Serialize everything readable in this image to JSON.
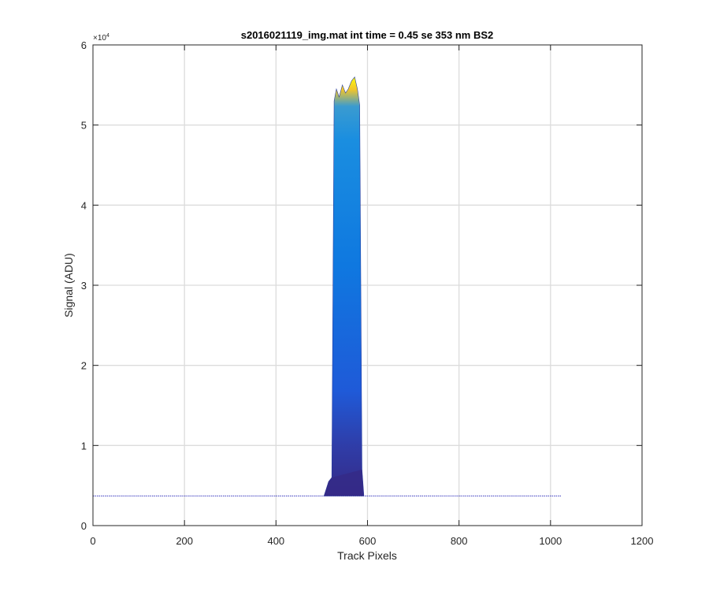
{
  "chart_data": {
    "type": "area",
    "title": "s2016021119_img.mat int time = 0.45 se  353 nm BS2",
    "xlabel": "Track Pixels",
    "ylabel": "Signal (ADU)",
    "exponent_base": "×10",
    "exponent_power": "4",
    "xlim": [
      0,
      1200
    ],
    "ylim": [
      0,
      6
    ],
    "xticks": [
      0,
      200,
      400,
      600,
      800,
      1000,
      1200
    ],
    "yticks": [
      0,
      1,
      2,
      3,
      4,
      5,
      6
    ],
    "xtick_labels": [
      "0",
      "200",
      "400",
      "600",
      "800",
      "1000",
      "1200"
    ],
    "ytick_labels": [
      "0",
      "1",
      "2",
      "3",
      "4",
      "5",
      "6"
    ],
    "grid": true,
    "baseline": {
      "x": [
        0,
        1024
      ],
      "y": 0.37,
      "color": "#3b3bbf"
    },
    "series": [
      {
        "x": [
          505,
          515,
          522,
          527,
          532,
          538,
          545,
          552,
          558,
          565,
          572,
          578,
          583,
          588,
          592
        ],
        "y": [
          0.37,
          0.55,
          0.6,
          5.3,
          5.45,
          5.35,
          5.5,
          5.4,
          5.45,
          5.55,
          5.6,
          5.45,
          5.25,
          0.7,
          0.37
        ]
      }
    ],
    "colormap": [
      "#352a87",
      "#1f5ad8",
      "#0f78e0",
      "#1a8ee0",
      "#f2c52a",
      "#f9fb0e"
    ]
  }
}
